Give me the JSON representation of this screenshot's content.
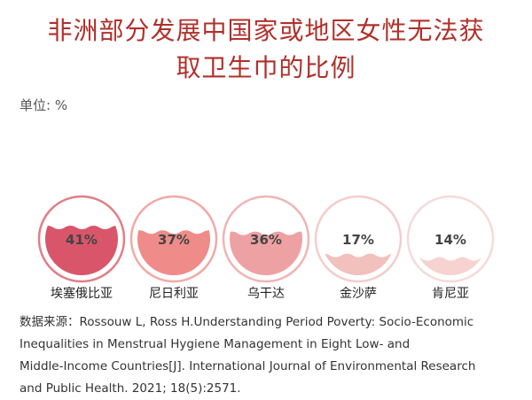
{
  "title_lines": [
    "非洲部分发展中国家或地区女性无法获",
    "取卫生巾的比例"
  ],
  "unit_label": "单位: %",
  "chart_data": {
    "type": "bar",
    "title": "非洲部分发展中国家或地区女性无法获取卫生巾的比例",
    "ylabel": "单位: %",
    "categories": [
      "埃塞俄比亚",
      "尼日利亚",
      "乌干达",
      "金沙萨",
      "肯尼亚"
    ],
    "values": [
      41,
      37,
      36,
      17,
      14
    ],
    "value_labels": [
      "41%",
      "37%",
      "36%",
      "17%",
      "14%"
    ],
    "ylim": [
      0,
      100
    ]
  },
  "colors": {
    "title": "#b0302b",
    "fills": [
      "#d9566a",
      "#ef8b88",
      "#eea1a3",
      "#f2c0bd",
      "#f6d3d0"
    ],
    "rings": [
      "#e07e87",
      "#f0aaa6",
      "#f0b4b4",
      "#f3cdcb",
      "#f6dad8"
    ]
  },
  "source_lines": [
    "数据来源：Rossouw L, Ross H.Understanding Period Poverty: Socio-Economic",
    "Inequalities in Menstrual Hygiene Management in Eight Low- and",
    "Middle-Income Countries[J]. International Journal of Environmental Research",
    "and Public Health. 2021; 18(5):2571."
  ]
}
